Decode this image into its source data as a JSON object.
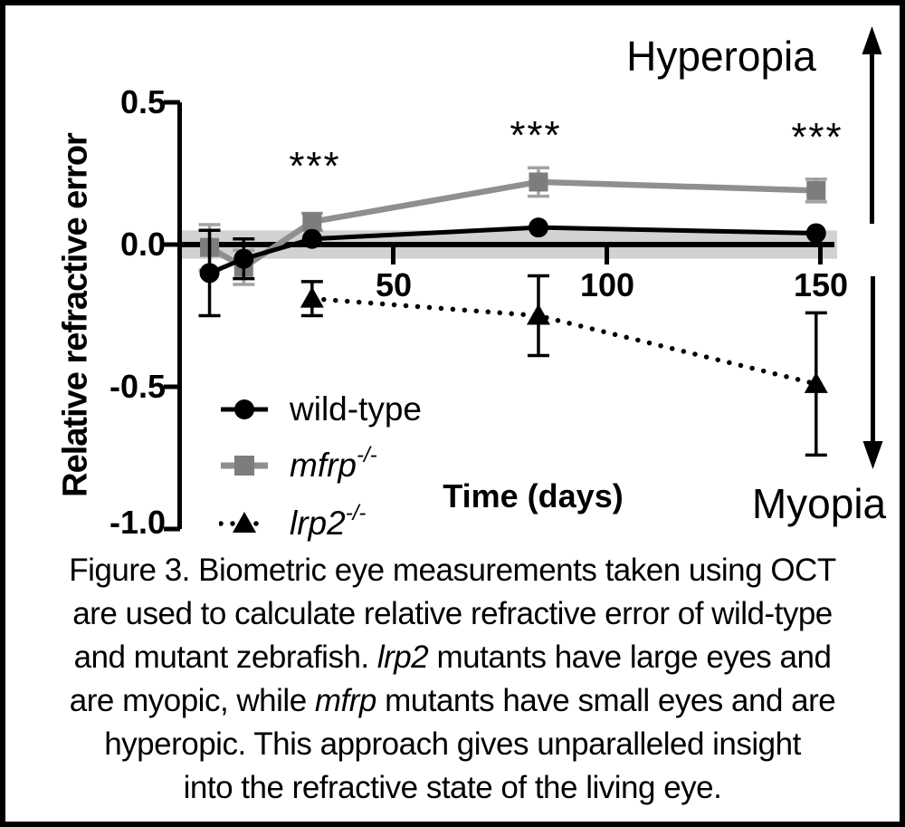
{
  "figure_labels": {
    "hyperopia": "Hyperopia",
    "myopia": "Myopia"
  },
  "chart_data": {
    "type": "line",
    "title": "",
    "xlabel": "Time (days)",
    "ylabel": "Relative refractive error",
    "xlim": [
      0,
      153
    ],
    "ylim": [
      -1.0,
      0.5
    ],
    "x_tick_values": [
      50,
      100,
      150
    ],
    "x_tick_labels": [
      "50",
      "100",
      "150"
    ],
    "y_tick_values": [
      0.5,
      0.0,
      -0.5,
      -1.0
    ],
    "y_tick_labels": [
      "0.5",
      "0.0",
      "-0.5",
      "-1.0"
    ],
    "grid": false,
    "legend_position": "lower-left",
    "reference_band": {
      "center": 0,
      "halfwidth": 0.05,
      "color": "#d2d2d2"
    },
    "series": [
      {
        "name": "wild-type",
        "marker": "circle",
        "line_style": "solid",
        "line_width": 5,
        "color": "#000000",
        "marker_color": "#000000",
        "error_color": "#000000",
        "draw_order": 2,
        "points": [
          {
            "x": 7,
            "y": -0.1,
            "err": 0.15
          },
          {
            "x": 15,
            "y": -0.05,
            "err": 0.07
          },
          {
            "x": 31,
            "y": 0.02,
            "err": 0
          },
          {
            "x": 84,
            "y": 0.06,
            "err": 0
          },
          {
            "x": 149,
            "y": 0.04,
            "err": 0
          }
        ]
      },
      {
        "name": "mfrp-/-",
        "marker": "square",
        "line_style": "solid",
        "line_width": 6.5,
        "color": "#8f8f8f",
        "marker_color": "#7d7d7d",
        "error_color": "#a2a2a2",
        "draw_order": 1,
        "points": [
          {
            "x": 7,
            "y": -0.01,
            "err": 0.08
          },
          {
            "x": 15,
            "y": -0.08,
            "err": 0.06
          },
          {
            "x": 31,
            "y": 0.08,
            "err": 0.03
          },
          {
            "x": 84,
            "y": 0.22,
            "err": 0.05
          },
          {
            "x": 149,
            "y": 0.19,
            "err": 0.04
          }
        ]
      },
      {
        "name": "lrp2-/-",
        "marker": "triangle",
        "line_style": "dotted",
        "line_width": 5.5,
        "color": "#000000",
        "marker_color": "#000000",
        "error_color": "#000000",
        "draw_order": 3,
        "points": [
          {
            "x": 31,
            "y": -0.19,
            "err": 0.06
          },
          {
            "x": 84,
            "y": -0.25,
            "err": 0.14
          },
          {
            "x": 149,
            "y": -0.49,
            "err": 0.25
          }
        ]
      }
    ],
    "annotations": [
      {
        "text": "***",
        "x": 31,
        "y": 0.27
      },
      {
        "text": "***",
        "x": 84,
        "y": 0.38
      },
      {
        "text": "***",
        "x": 149,
        "y": 0.37
      }
    ]
  },
  "legend": {
    "items": [
      {
        "label": "wild-type",
        "sup": ""
      },
      {
        "label": "mfrp",
        "sup": "-/-"
      },
      {
        "label": "lrp2",
        "sup": "-/-"
      }
    ]
  },
  "caption": {
    "line1": "Figure 3. Biometric eye measurements taken using OCT",
    "line2": "are used to calculate relative refractive error of wild-type",
    "line3_pre": "and mutant zebrafish. ",
    "line3_italic": "lrp2",
    "line3_post": " mutants have large eyes and",
    "line4_pre": "are myopic, while ",
    "line4_italic": "mfrp",
    "line4_post": " mutants have small eyes and are",
    "line5": "hyperopic.  This approach gives unparalleled insight",
    "line6": "into the refractive state of the living eye."
  }
}
